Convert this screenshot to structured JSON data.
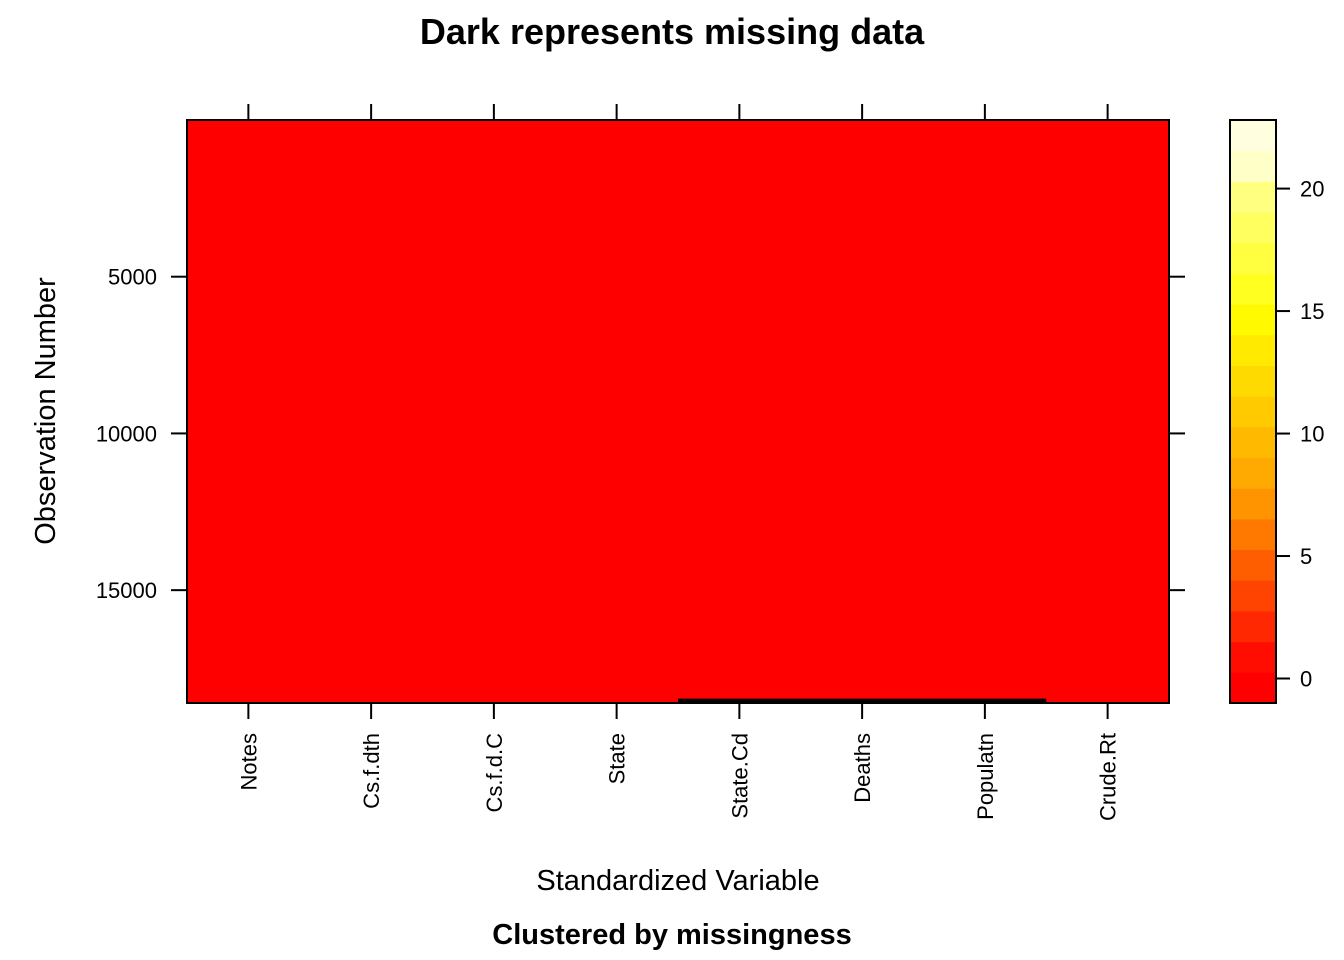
{
  "chart_data": {
    "type": "heatmap",
    "title": "Dark represents missing data",
    "subtitle": "Clustered by missingness",
    "xlabel": "Standardized Variable",
    "ylabel": "Observation Number",
    "variables": [
      "Notes",
      "Cs.f.dth",
      "Cs.f.d.C",
      "State",
      "State.Cd",
      "Deaths",
      "Populatn",
      "Crude.Rt"
    ],
    "y_ticks": [
      5000,
      10000,
      15000
    ],
    "ylim": [
      1,
      18600
    ],
    "y_reversed": true,
    "colorbar": {
      "ticks": [
        0,
        5,
        10,
        15,
        20
      ],
      "range": [
        -1,
        22.8
      ],
      "palette": [
        "#FF0000",
        "#FF0D00",
        "#FF2800",
        "#FF4300",
        "#FF5E00",
        "#FF7900",
        "#FF9400",
        "#FFAA00",
        "#FFBA00",
        "#FFCA00",
        "#FFDA00",
        "#FFEA00",
        "#FFFA00",
        "#FFFF20",
        "#FFFF40",
        "#FFFF60",
        "#FFFF80",
        "#FFFFC8",
        "#FFFFE0"
      ]
    },
    "fill_color": "#FF0000",
    "missing": {
      "variables": [
        "State.Cd",
        "Deaths",
        "Populatn"
      ],
      "rows": [
        18460,
        18600
      ],
      "color": "#000000"
    },
    "grid": false
  }
}
